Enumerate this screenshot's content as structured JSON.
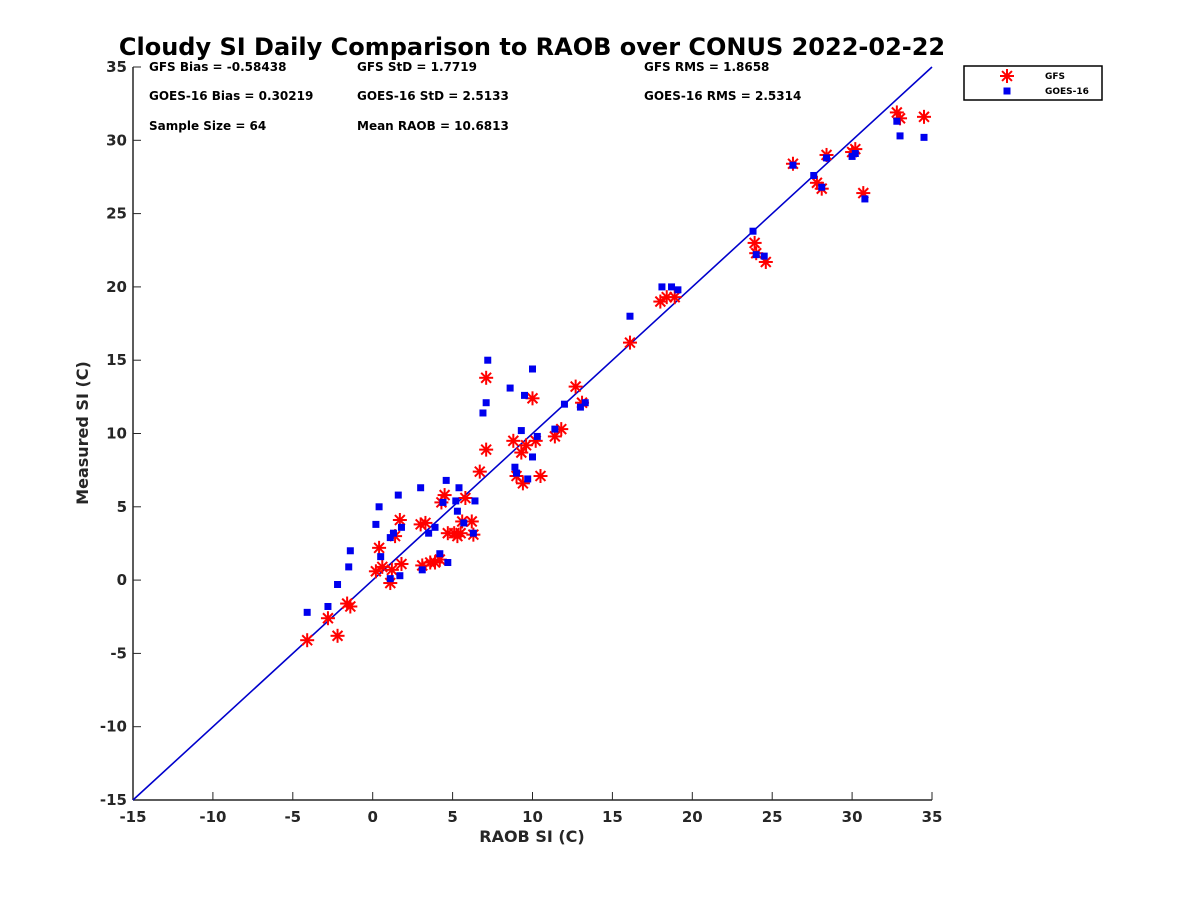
{
  "chart_data": {
    "type": "scatter",
    "title": "Cloudy SI Daily Comparison to RAOB over CONUS 2022-02-22",
    "xlabel": "RAOB SI (C)",
    "ylabel": "Measured SI (C)",
    "xlim": [
      -15,
      35
    ],
    "ylim": [
      -15,
      35
    ],
    "xticks": [
      -15,
      -10,
      -5,
      0,
      5,
      10,
      15,
      20,
      25,
      30,
      35
    ],
    "yticks": [
      -15,
      -10,
      -5,
      0,
      5,
      10,
      15,
      20,
      25,
      30,
      35
    ],
    "grid": false,
    "legend_position": "outside top-right",
    "reference_line": {
      "x": [
        -15,
        35
      ],
      "y": [
        -15,
        35
      ],
      "color": "#0000cc"
    },
    "stats": [
      "GFS Bias = -0.58438",
      "GFS StD = 1.7719",
      "GFS RMS = 1.8658",
      "GOES-16 Bias = 0.30219",
      "GOES-16 StD = 2.5133",
      "GOES-16 RMS = 2.5314",
      "Sample Size = 64",
      "Mean RAOB = 10.6813"
    ],
    "series": [
      {
        "name": "GFS",
        "marker": "asterisk",
        "color": "#ff0000",
        "points": [
          [
            -4.1,
            -4.1
          ],
          [
            -2.8,
            -2.6
          ],
          [
            -2.2,
            -3.8
          ],
          [
            -1.6,
            -1.6
          ],
          [
            -1.4,
            -1.8
          ],
          [
            0.2,
            0.6
          ],
          [
            0.4,
            2.2
          ],
          [
            0.6,
            0.9
          ],
          [
            1.1,
            -0.2
          ],
          [
            1.2,
            0.7
          ],
          [
            1.4,
            3.0
          ],
          [
            1.7,
            4.1
          ],
          [
            1.8,
            1.1
          ],
          [
            3.0,
            3.8
          ],
          [
            3.1,
            1.0
          ],
          [
            3.3,
            3.9
          ],
          [
            3.6,
            1.2
          ],
          [
            3.9,
            1.2
          ],
          [
            4.2,
            1.4
          ],
          [
            4.3,
            5.3
          ],
          [
            4.5,
            5.8
          ],
          [
            4.7,
            3.2
          ],
          [
            5.1,
            3.2
          ],
          [
            5.3,
            3.0
          ],
          [
            5.5,
            3.2
          ],
          [
            5.6,
            4.0
          ],
          [
            5.8,
            5.6
          ],
          [
            6.2,
            4.0
          ],
          [
            6.3,
            3.1
          ],
          [
            6.7,
            7.4
          ],
          [
            7.1,
            13.8
          ],
          [
            7.1,
            8.9
          ],
          [
            8.8,
            9.5
          ],
          [
            9.0,
            7.1
          ],
          [
            9.3,
            8.7
          ],
          [
            9.4,
            6.6
          ],
          [
            9.6,
            9.2
          ],
          [
            10.0,
            12.4
          ],
          [
            10.2,
            9.5
          ],
          [
            10.5,
            7.1
          ],
          [
            11.4,
            9.8
          ],
          [
            11.8,
            10.3
          ],
          [
            12.7,
            13.2
          ],
          [
            13.1,
            12.1
          ],
          [
            16.1,
            16.2
          ],
          [
            18.0,
            19.0
          ],
          [
            18.4,
            19.3
          ],
          [
            18.9,
            19.3
          ],
          [
            23.9,
            23.0
          ],
          [
            24.0,
            22.3
          ],
          [
            24.6,
            21.7
          ],
          [
            26.3,
            28.4
          ],
          [
            27.8,
            27.1
          ],
          [
            28.1,
            26.7
          ],
          [
            28.4,
            29.0
          ],
          [
            30.0,
            29.2
          ],
          [
            30.2,
            29.4
          ],
          [
            30.7,
            26.4
          ],
          [
            32.8,
            31.9
          ],
          [
            33.0,
            31.5
          ],
          [
            34.5,
            31.6
          ]
        ]
      },
      {
        "name": "GOES-16",
        "marker": "square",
        "color": "#0000ee",
        "points": [
          [
            -4.1,
            -2.2
          ],
          [
            -2.8,
            -1.8
          ],
          [
            -2.2,
            -0.3
          ],
          [
            -1.5,
            0.9
          ],
          [
            -1.4,
            2.0
          ],
          [
            0.2,
            3.8
          ],
          [
            0.4,
            5.0
          ],
          [
            0.5,
            1.6
          ],
          [
            1.1,
            0.1
          ],
          [
            1.1,
            2.9
          ],
          [
            1.3,
            3.2
          ],
          [
            1.6,
            5.8
          ],
          [
            1.7,
            0.3
          ],
          [
            1.8,
            3.6
          ],
          [
            3.0,
            6.3
          ],
          [
            3.1,
            0.7
          ],
          [
            3.5,
            3.2
          ],
          [
            3.9,
            3.6
          ],
          [
            4.2,
            1.8
          ],
          [
            4.4,
            5.3
          ],
          [
            4.6,
            6.8
          ],
          [
            4.7,
            1.2
          ],
          [
            5.2,
            5.4
          ],
          [
            5.3,
            4.7
          ],
          [
            5.4,
            6.3
          ],
          [
            5.7,
            3.9
          ],
          [
            6.3,
            3.2
          ],
          [
            6.4,
            5.4
          ],
          [
            6.9,
            11.4
          ],
          [
            7.1,
            12.1
          ],
          [
            7.2,
            15.0
          ],
          [
            8.6,
            13.1
          ],
          [
            8.9,
            7.7
          ],
          [
            9.0,
            7.3
          ],
          [
            9.3,
            10.2
          ],
          [
            9.5,
            12.6
          ],
          [
            9.7,
            6.9
          ],
          [
            10.0,
            8.4
          ],
          [
            10.0,
            14.4
          ],
          [
            10.3,
            9.8
          ],
          [
            11.4,
            10.3
          ],
          [
            12.0,
            12.0
          ],
          [
            13.0,
            11.8
          ],
          [
            13.3,
            12.1
          ],
          [
            16.1,
            18.0
          ],
          [
            18.1,
            20.0
          ],
          [
            18.7,
            20.0
          ],
          [
            19.1,
            19.8
          ],
          [
            23.8,
            23.8
          ],
          [
            24.0,
            22.2
          ],
          [
            24.5,
            22.1
          ],
          [
            26.3,
            28.3
          ],
          [
            27.6,
            27.6
          ],
          [
            28.1,
            26.8
          ],
          [
            28.4,
            28.8
          ],
          [
            30.0,
            28.9
          ],
          [
            30.2,
            29.1
          ],
          [
            30.8,
            26.0
          ],
          [
            32.8,
            31.3
          ],
          [
            33.0,
            30.3
          ],
          [
            34.5,
            30.2
          ]
        ]
      }
    ]
  }
}
